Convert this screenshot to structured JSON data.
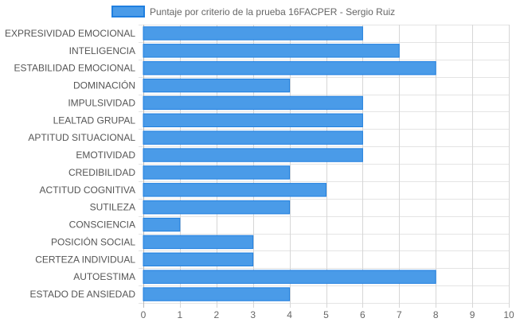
{
  "chart_data": {
    "type": "bar",
    "orientation": "horizontal",
    "categories": [
      "EXPRESIVIDAD EMOCIONAL",
      "INTELIGENCIA",
      "ESTABILIDAD EMOCIONAL",
      "DOMINACIÓN",
      "IMPULSIVIDAD",
      "LEALTAD GRUPAL",
      "APTITUD SITUACIONAL",
      "EMOTIVIDAD",
      "CREDIBILIDAD",
      "ACTITUD COGNITIVA",
      "SUTILEZA",
      "CONSCIENCIA",
      "POSICIÓN SOCIAL",
      "CERTEZA INDIVIDUAL",
      "AUTOESTIMA",
      "ESTADO DE ANSIEDAD"
    ],
    "series": [
      {
        "name": "Puntaje por criterio de la prueba 16FACPER - Sergio Ruiz",
        "values": [
          6,
          7,
          8,
          4,
          6,
          6,
          6,
          6,
          4,
          5,
          4,
          1,
          3,
          3,
          8,
          4
        ],
        "color": "#4a9be8",
        "border_color": "#1f7fe0"
      }
    ],
    "xlim": [
      0,
      10
    ],
    "xticks": [
      "0",
      "1",
      "2",
      "3",
      "4",
      "5",
      "6",
      "7",
      "8",
      "9",
      "10"
    ],
    "grid": true,
    "legend_position": "top"
  }
}
